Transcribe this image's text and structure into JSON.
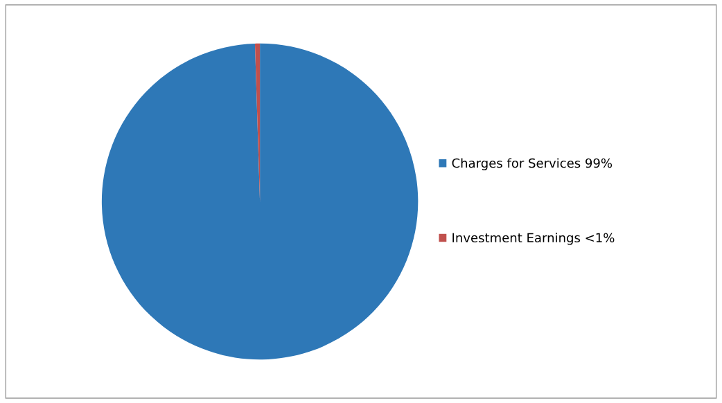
{
  "chart_data": {
    "type": "pie",
    "categories": [
      "Charges for Services 99%",
      "Investment Earnings <1%"
    ],
    "values": [
      99.5,
      0.5
    ],
    "colors": [
      "#2e78b7",
      "#c0504d"
    ],
    "legend": "right"
  }
}
